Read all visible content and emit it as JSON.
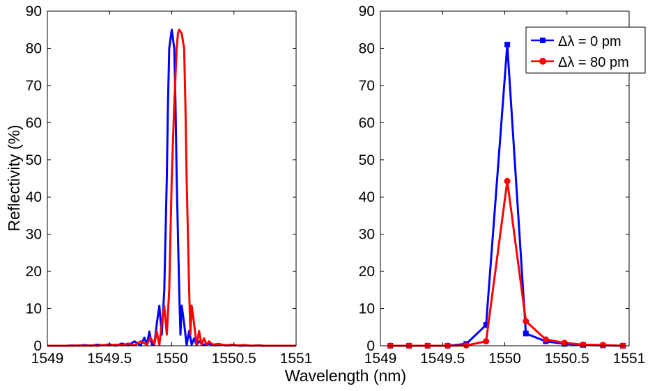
{
  "figure": {
    "xlabel": "Wavelength (nm)",
    "ylabel": "Reflectivity (%)"
  },
  "chart_data": [
    {
      "type": "line",
      "panel": "left",
      "xlim": [
        1549,
        1551
      ],
      "ylim": [
        0,
        90
      ],
      "xticks": [
        1549,
        1549.5,
        1550,
        1550.5,
        1551
      ],
      "xtick_labels": [
        "1549",
        "1549.5",
        "1550",
        "1550.5",
        "1551"
      ],
      "yticks": [
        0,
        10,
        20,
        30,
        40,
        50,
        60,
        70,
        80,
        90
      ],
      "ytick_labels": [
        "0",
        "10",
        "20",
        "30",
        "40",
        "50",
        "60",
        "70",
        "80",
        "90"
      ],
      "grid": false,
      "series": [
        {
          "color": "#0000ff",
          "center": 1550.0,
          "peak": 85,
          "x": [
            1549.0,
            1549.05,
            1549.1,
            1549.15,
            1549.2,
            1549.25,
            1549.3,
            1549.35,
            1549.4,
            1549.45,
            1549.5,
            1549.55,
            1549.6,
            1549.65,
            1549.7,
            1549.75,
            1549.78,
            1549.8,
            1549.82,
            1549.84,
            1549.86,
            1549.88,
            1549.9,
            1549.92,
            1549.94,
            1549.96,
            1549.97,
            1549.98,
            1550.0,
            1550.02,
            1550.03,
            1550.04,
            1550.06,
            1550.07,
            1550.08,
            1550.1,
            1550.12,
            1550.14,
            1550.16,
            1550.18,
            1550.2,
            1550.22,
            1550.25,
            1550.3,
            1550.35,
            1550.4,
            1550.45,
            1550.5,
            1550.55,
            1550.6,
            1550.65,
            1550.7,
            1550.75,
            1550.8,
            1550.85,
            1550.9,
            1550.95,
            1551.0
          ],
          "values": [
            0.0,
            0.0,
            0.0,
            0.0,
            0.1,
            0.0,
            0.2,
            0.0,
            0.3,
            0.1,
            0.4,
            0.0,
            0.6,
            0.1,
            1.2,
            0.1,
            2.2,
            0.3,
            3.8,
            0.4,
            0.2,
            6.0,
            10.8,
            3.0,
            15.0,
            45.0,
            65.0,
            80.0,
            85.0,
            80.0,
            65.0,
            45.0,
            15.0,
            3.0,
            10.8,
            6.0,
            0.2,
            4.0,
            0.3,
            2.0,
            0.2,
            1.2,
            0.3,
            0.5,
            0.1,
            0.3,
            0.1,
            0.2,
            0.0,
            0.1,
            0.0,
            0.1,
            0.0,
            0.0,
            0.0,
            0.0,
            0.0,
            0.0
          ]
        },
        {
          "color": "#ff0000",
          "center": 1550.08,
          "peak": 85,
          "x": [
            1549.0,
            1549.05,
            1549.1,
            1549.15,
            1549.2,
            1549.25,
            1549.3,
            1549.35,
            1549.4,
            1549.45,
            1549.5,
            1549.55,
            1549.6,
            1549.65,
            1549.7,
            1549.75,
            1549.8,
            1549.83,
            1549.86,
            1549.88,
            1549.9,
            1549.92,
            1549.94,
            1549.96,
            1549.98,
            1550.0,
            1550.02,
            1550.04,
            1550.05,
            1550.06,
            1550.08,
            1550.1,
            1550.11,
            1550.12,
            1550.14,
            1550.15,
            1550.16,
            1550.18,
            1550.2,
            1550.22,
            1550.24,
            1550.26,
            1550.28,
            1550.3,
            1550.33,
            1550.38,
            1550.43,
            1550.48,
            1550.53,
            1550.58,
            1550.63,
            1550.68,
            1550.73,
            1550.8,
            1550.85,
            1550.9,
            1550.95,
            1551.0
          ],
          "values": [
            0.0,
            0.0,
            0.0,
            0.0,
            0.0,
            0.1,
            0.0,
            0.1,
            0.0,
            0.2,
            0.1,
            0.3,
            0.1,
            0.6,
            0.1,
            1.2,
            0.3,
            2.2,
            0.4,
            3.8,
            0.2,
            6.0,
            10.8,
            3.0,
            15.0,
            45.0,
            65.0,
            80.0,
            84.0,
            85.0,
            84.0,
            80.0,
            65.0,
            45.0,
            15.0,
            3.0,
            10.8,
            6.0,
            0.2,
            4.0,
            0.3,
            2.0,
            0.2,
            1.2,
            0.3,
            0.5,
            0.1,
            0.3,
            0.1,
            0.2,
            0.0,
            0.1,
            0.0,
            0.0,
            0.0,
            0.0,
            0.0,
            0.0
          ]
        }
      ]
    },
    {
      "type": "line",
      "panel": "right",
      "xlim": [
        1549,
        1551
      ],
      "ylim": [
        0,
        90
      ],
      "xticks": [
        1549,
        1549.5,
        1550,
        1550.5,
        1551
      ],
      "xtick_labels": [
        "1549",
        "1549.5",
        "1550",
        "1550.5",
        "1551"
      ],
      "yticks": [
        0,
        10,
        20,
        30,
        40,
        50,
        60,
        70,
        80,
        90
      ],
      "ytick_labels": [
        "0",
        "10",
        "20",
        "30",
        "40",
        "50",
        "60",
        "70",
        "80",
        "90"
      ],
      "grid": false,
      "legend_position": "top-right",
      "series": [
        {
          "name": "Δλ = 0 pm",
          "color": "#0000ff",
          "marker": "square",
          "x": [
            1549.08,
            1549.23,
            1549.38,
            1549.54,
            1549.69,
            1549.85,
            1550.02,
            1550.17,
            1550.33,
            1550.48,
            1550.63,
            1550.79,
            1550.95
          ],
          "values": [
            0.0,
            0.0,
            0.0,
            0.0,
            0.5,
            5.6,
            81.0,
            3.3,
            1.2,
            0.5,
            0.2,
            0.1,
            0.0
          ]
        },
        {
          "name": "Δλ = 80 pm",
          "color": "#ff0000",
          "marker": "circle",
          "x": [
            1549.08,
            1549.23,
            1549.38,
            1549.54,
            1549.69,
            1549.85,
            1550.02,
            1550.17,
            1550.33,
            1550.48,
            1550.63,
            1550.79,
            1550.95
          ],
          "values": [
            0.0,
            0.0,
            0.0,
            0.0,
            0.1,
            1.2,
            44.3,
            6.6,
            1.7,
            0.8,
            0.3,
            0.2,
            0.0
          ]
        }
      ]
    }
  ]
}
